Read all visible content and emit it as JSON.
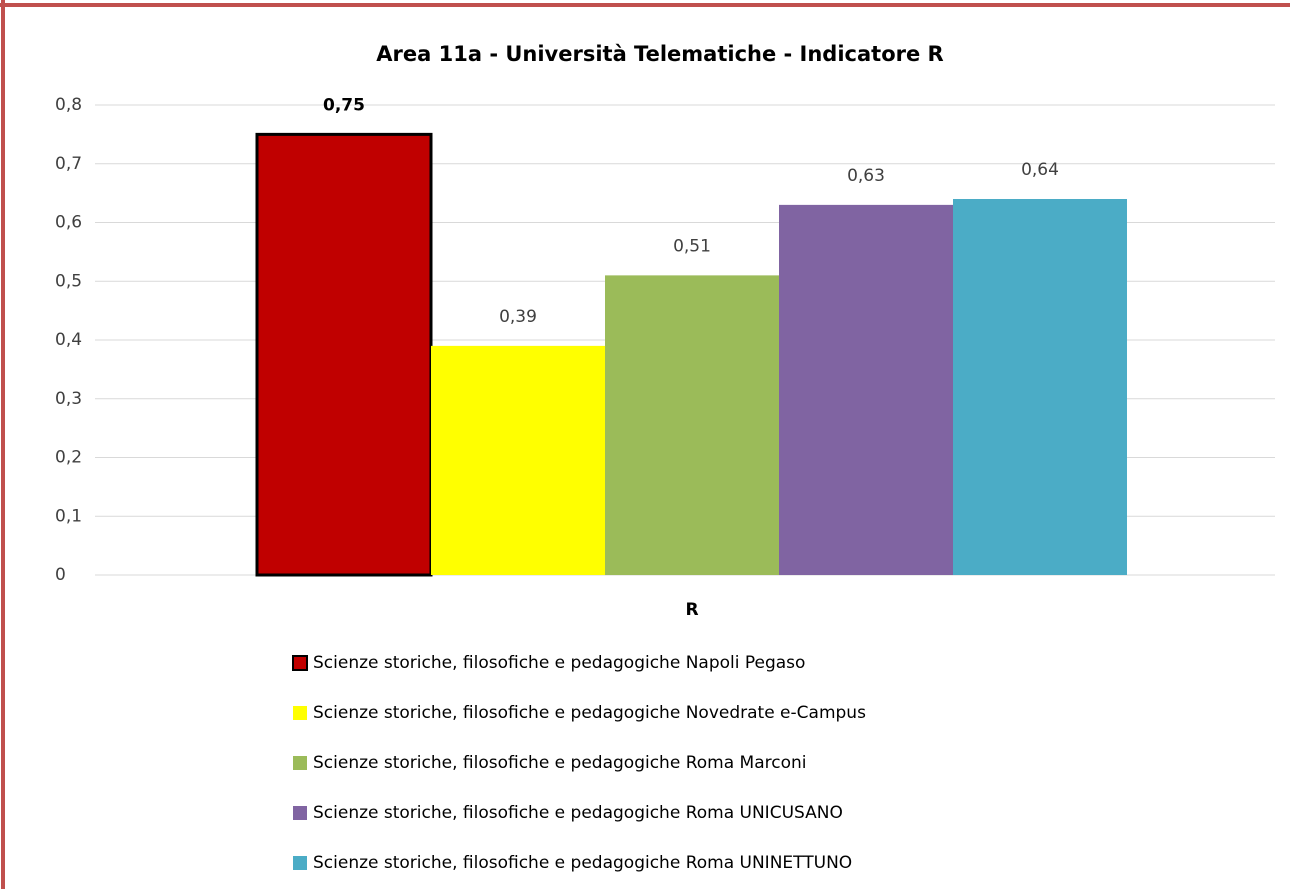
{
  "chart_data": {
    "type": "bar",
    "title": "Area 11a - Università Telematiche - Indicatore R",
    "categories": [
      "R"
    ],
    "series": [
      {
        "name": "Scienze storiche, filosofiche e pedagogiche Napoli Pegaso",
        "color": "#c00000",
        "edgecolor": "#000000",
        "values": [
          0.75
        ],
        "value_labels": [
          "0,75"
        ]
      },
      {
        "name": "Scienze storiche, filosofiche e pedagogiche Novedrate e-Campus",
        "color": "#ffff00",
        "values": [
          0.39
        ],
        "value_labels": [
          "0,39"
        ]
      },
      {
        "name": "Scienze storiche, filosofiche e pedagogiche Roma Marconi",
        "color": "#9bbb59",
        "values": [
          0.51
        ],
        "value_labels": [
          "0,51"
        ]
      },
      {
        "name": "Scienze storiche, filosofiche e pedagogiche Roma UNICUSANO",
        "color": "#8064a2",
        "values": [
          0.63
        ],
        "value_labels": [
          "0,63"
        ]
      },
      {
        "name": "Scienze storiche, filosofiche e pedagogiche Roma UNINETTUNO",
        "color": "#4bacc6",
        "values": [
          0.64
        ],
        "value_labels": [
          "0,64"
        ]
      }
    ],
    "ylim": [
      0,
      0.8
    ],
    "yticks": [
      0,
      {
        "value": 0.1,
        "label": "0,1"
      },
      {
        "value": 0.2,
        "label": "0,2"
      },
      {
        "value": 0.3,
        "label": "0,3"
      },
      {
        "value": 0.4,
        "label": "0,4"
      },
      {
        "value": 0.5,
        "label": "0,5"
      },
      {
        "value": 0.6,
        "label": "0,6"
      },
      {
        "value": 0.7,
        "label": "0,7"
      },
      {
        "value": 0.8,
        "label": "0,8"
      }
    ],
    "grid": true,
    "legend": "bottom"
  }
}
